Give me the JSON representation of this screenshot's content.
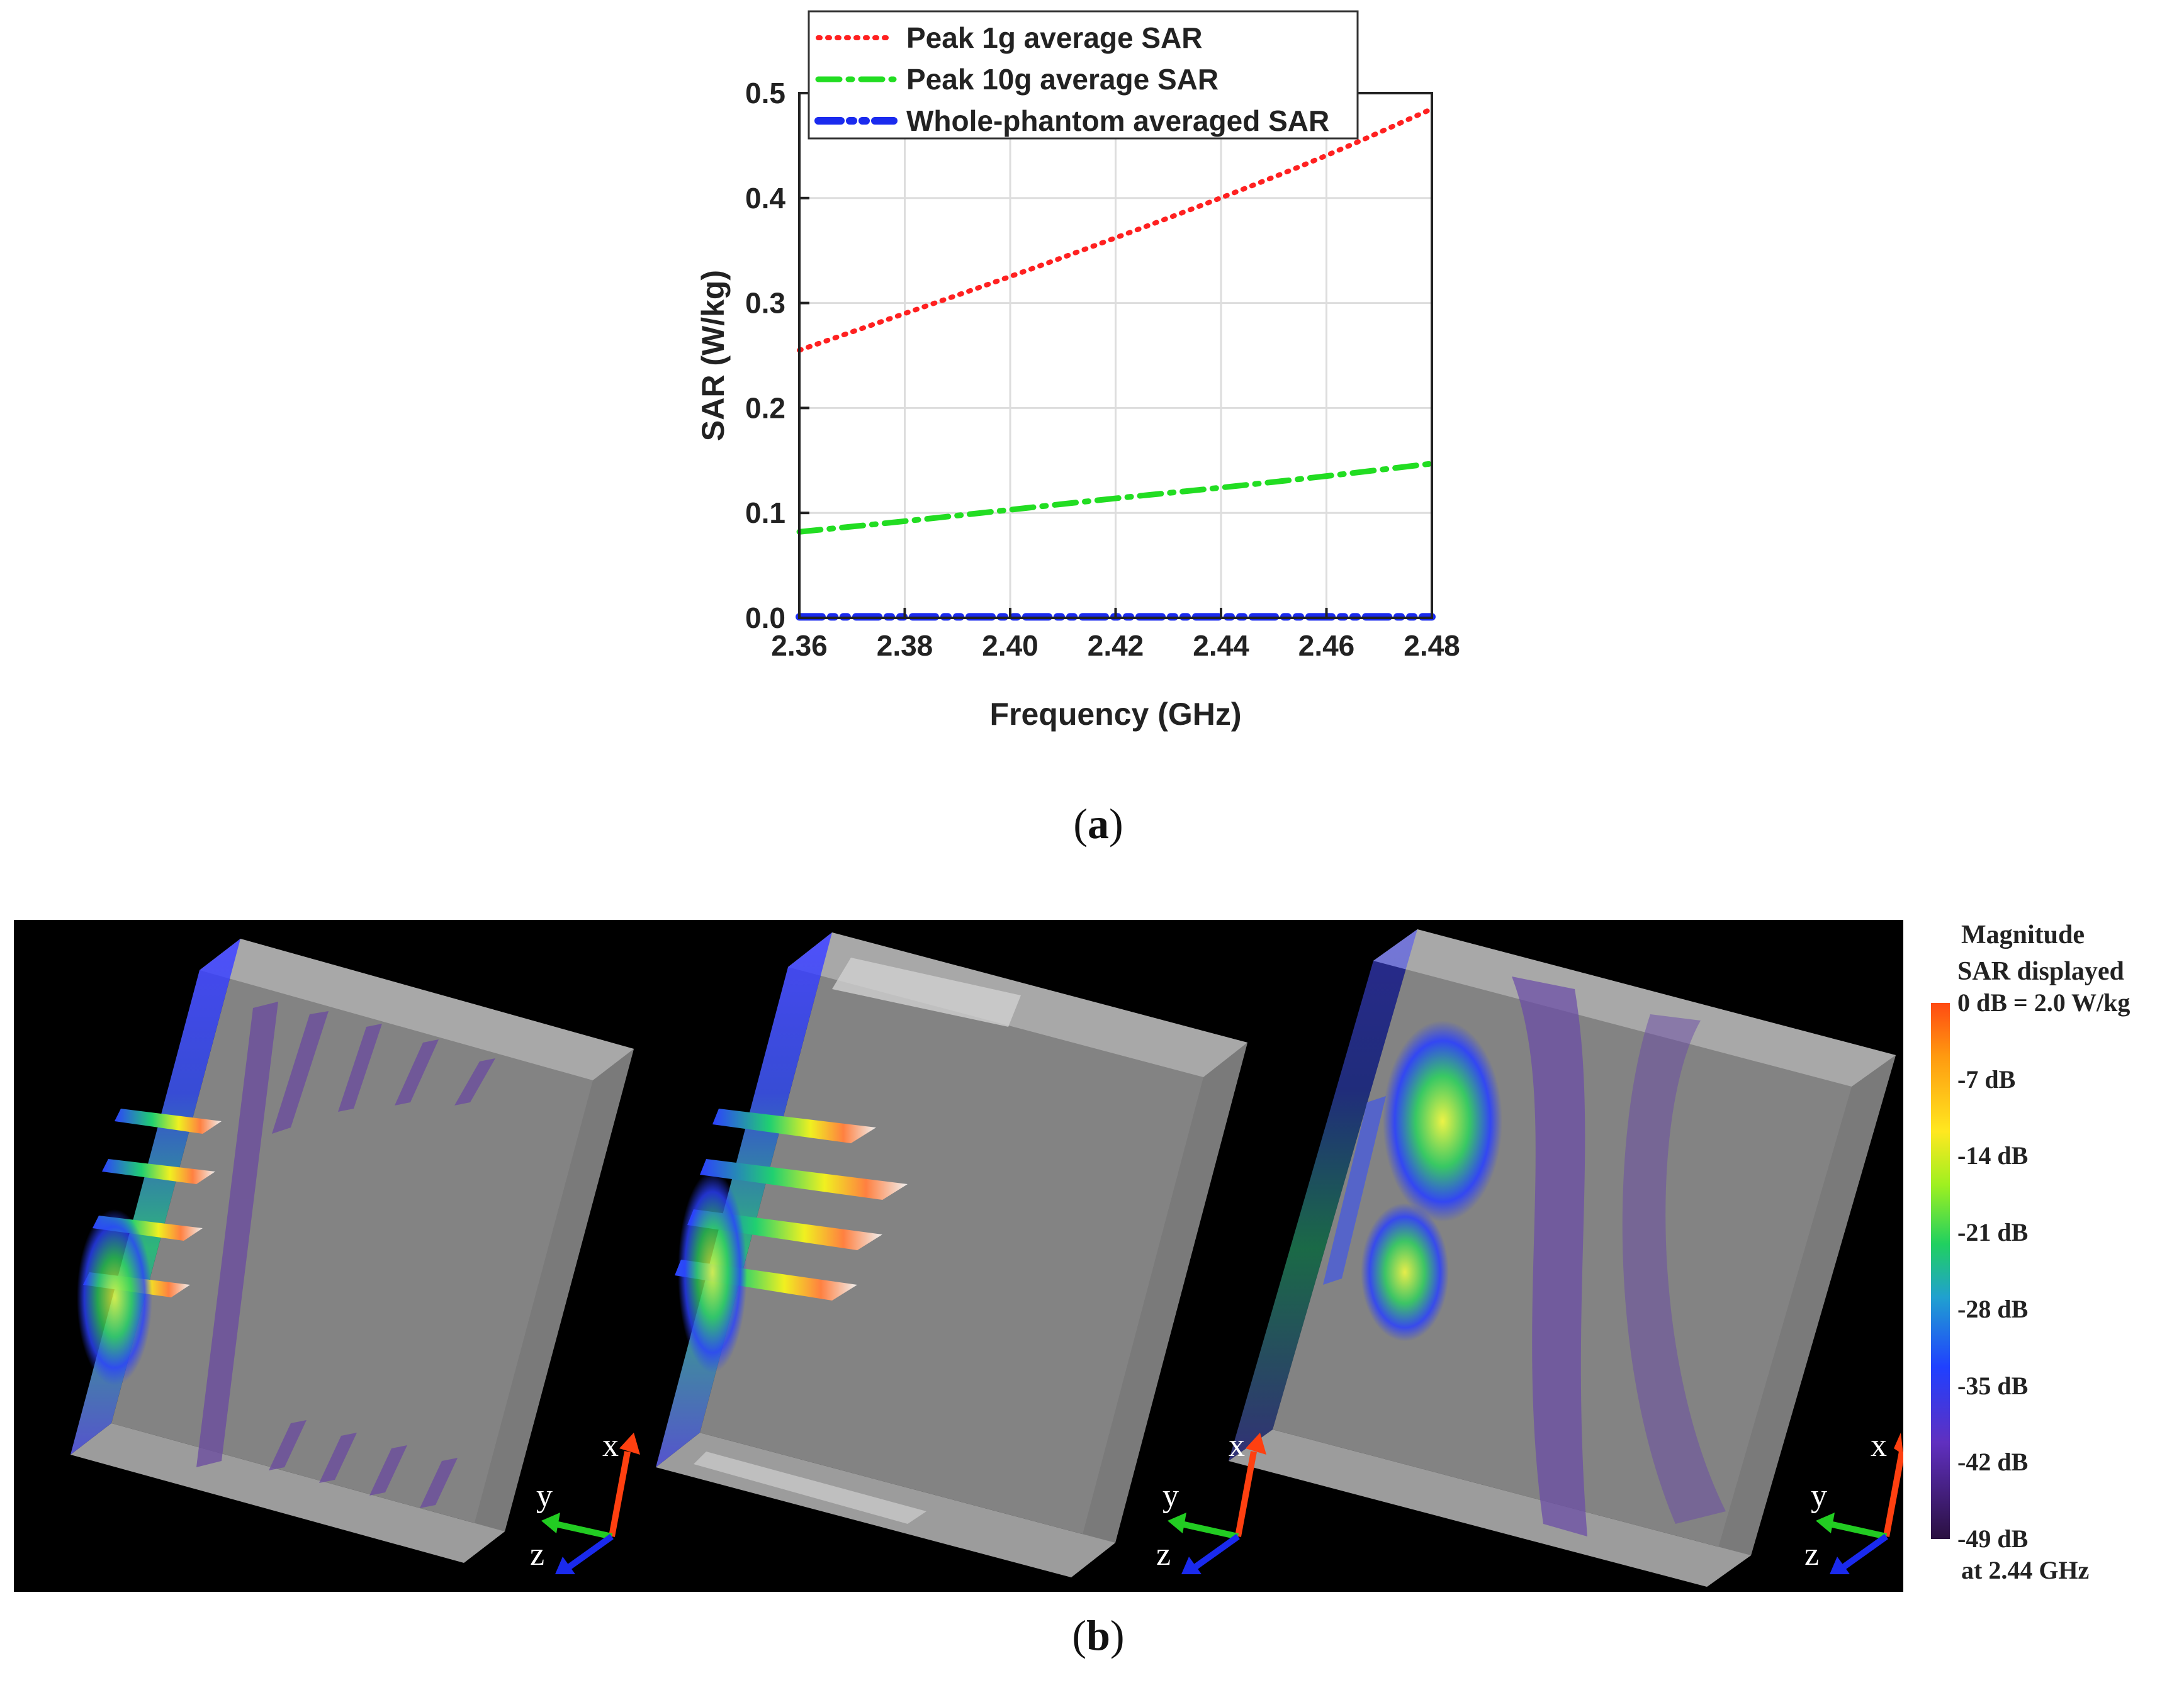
{
  "chart_data": {
    "type": "line",
    "title": "",
    "xlabel": "Frequency (GHz)",
    "ylabel": "SAR (W/kg)",
    "xlim": [
      2.36,
      2.48
    ],
    "ylim": [
      0.0,
      0.5
    ],
    "xticks": [
      "2.36",
      "2.38",
      "2.40",
      "2.42",
      "2.44",
      "2.46",
      "2.48"
    ],
    "yticks": [
      "0.0",
      "0.1",
      "0.2",
      "0.3",
      "0.4",
      "0.5"
    ],
    "grid": true,
    "legend_position": "top",
    "x": [
      2.36,
      2.38,
      2.4,
      2.42,
      2.44,
      2.46,
      2.48
    ],
    "series": [
      {
        "name": "Peak 1g average SAR",
        "values": [
          0.255,
          0.29,
          0.325,
          0.362,
          0.4,
          0.44,
          0.485
        ],
        "color": "#ff2020",
        "style": "dotted"
      },
      {
        "name": "Peak 10g average SAR",
        "values": [
          0.082,
          0.092,
          0.103,
          0.114,
          0.124,
          0.135,
          0.147
        ],
        "color": "#22dd22",
        "style": "dashdot"
      },
      {
        "name": "Whole-phantom averaged SAR",
        "values": [
          0.001,
          0.001,
          0.001,
          0.001,
          0.001,
          0.001,
          0.001
        ],
        "color": "#1a2aee",
        "style": "dashdotdot"
      }
    ]
  },
  "captions": {
    "a": "a",
    "b": "b"
  },
  "colorbar": {
    "title_line1": "Magnitude",
    "title_line2": "SAR displayed",
    "labels": [
      "0 dB = 2.0 W/kg",
      "-7 dB",
      "-14 dB",
      "-21 dB",
      "-28 dB",
      "-35 dB",
      "-42 dB",
      "-49 dB"
    ],
    "footer": "at 2.44 GHz"
  },
  "axes_triad": {
    "x_label": "x",
    "y_label": "y",
    "z_label": "z"
  }
}
